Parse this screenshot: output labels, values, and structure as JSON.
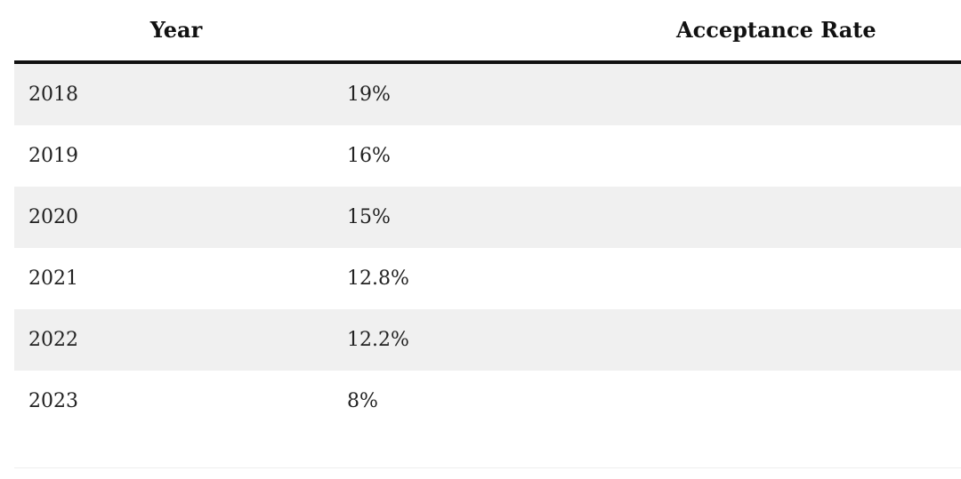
{
  "table": {
    "headers": {
      "year": "Year",
      "rate": "Acceptance Rate"
    },
    "rows": [
      {
        "year": "2018",
        "rate": "19%"
      },
      {
        "year": "2019",
        "rate": "16%"
      },
      {
        "year": "2020",
        "rate": "15%"
      },
      {
        "year": "2021",
        "rate": "12.8%"
      },
      {
        "year": "2022",
        "rate": "12.2%"
      },
      {
        "year": "2023",
        "rate": "8%"
      }
    ]
  },
  "colors": {
    "header_rule": "#111111",
    "row_shade": "#f0f0f0",
    "text": "#222222"
  }
}
